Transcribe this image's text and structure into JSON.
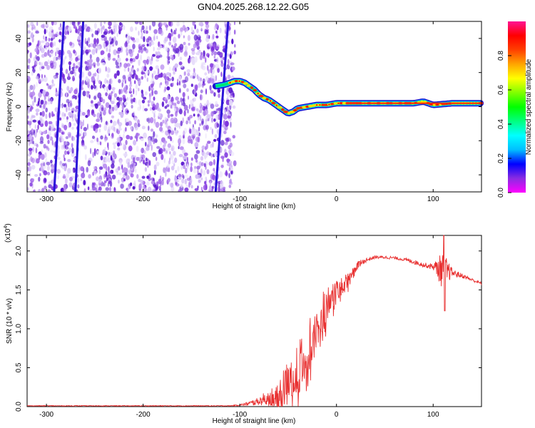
{
  "title": "GN04.2025.268.12.22.G05",
  "colors": {
    "snr_line": "#e83030",
    "colormap": [
      "#ffffff",
      "#d9c8f5",
      "#b07af0",
      "#8a2be2",
      "#3a1fd6",
      "#0000ff",
      "#00bfff",
      "#00e676",
      "#7cff00",
      "#ffff00",
      "#ffa500",
      "#ff0000",
      "#ff1493"
    ]
  },
  "chart_data": [
    {
      "type": "heatmap",
      "title": "GN04.2025.268.12.22.G05",
      "xlabel": "Height of straight line (km)",
      "ylabel": "Frequency (Hz)",
      "xlim": [
        -320,
        150
      ],
      "ylim": [
        -50,
        50
      ],
      "xticks": [
        -300,
        -200,
        -100,
        0,
        100
      ],
      "yticks": [
        -40,
        -20,
        0,
        20,
        40
      ],
      "colorbar": {
        "label": "Normalized spectral amplitude",
        "range": [
          0,
          1
        ],
        "ticks": [
          "0.0",
          "0.2",
          "0.4",
          "0.6",
          "0.8"
        ]
      },
      "ridge": {
        "x": [
          -125,
          -115,
          -110,
          -105,
          -100,
          -95,
          -90,
          -85,
          -80,
          -75,
          -70,
          -65,
          -60,
          -55,
          -50,
          -45,
          -40,
          -30,
          -20,
          -10,
          0,
          10,
          20,
          40,
          60,
          80,
          90,
          100,
          120,
          150
        ],
        "y": [
          12,
          13,
          14,
          15,
          15,
          14,
          12,
          10,
          7,
          5,
          4,
          2,
          0,
          -2,
          -4,
          -3,
          -1,
          0,
          1,
          1,
          2,
          2,
          2,
          2,
          2,
          2,
          3,
          1,
          2,
          2
        ]
      },
      "noise_region_x": [
        -320,
        -105
      ],
      "diagonal_streaks": [
        {
          "x_bottom": -292,
          "x_top": -282
        },
        {
          "x_bottom": -270,
          "x_top": -262
        },
        {
          "x_bottom": -125,
          "x_top": -112
        }
      ]
    },
    {
      "type": "line",
      "xlabel": "Height of straight line (km)",
      "ylabel": "SNR (10 * v/v)",
      "scale_label": "(x10",
      "scale_exponent": "4",
      "xlim": [
        -320,
        150
      ],
      "ylim": [
        0,
        2.2
      ],
      "xticks": [
        -300,
        -200,
        -100,
        0,
        100
      ],
      "yticks": [
        "0.0",
        "0.5",
        "1.0",
        "1.5",
        "2.0"
      ],
      "series": [
        {
          "x": [
            -320,
            -200,
            -110,
            -100,
            -90,
            -80,
            -70,
            -60,
            -55,
            -50,
            -45,
            -40,
            -35,
            -30,
            -25,
            -20,
            -15,
            -10,
            -5,
            0,
            5,
            10,
            15,
            20,
            30,
            40,
            50,
            60,
            70,
            80,
            90,
            100,
            110,
            120,
            130,
            140,
            150
          ],
          "y": [
            0.01,
            0.01,
            0.01,
            0.02,
            0.04,
            0.07,
            0.12,
            0.25,
            0.4,
            0.45,
            0.5,
            0.6,
            0.7,
            0.85,
            1.05,
            1.15,
            1.3,
            1.4,
            1.45,
            1.55,
            1.6,
            1.65,
            1.7,
            1.8,
            1.88,
            1.92,
            1.92,
            1.91,
            1.89,
            1.86,
            1.82,
            1.8,
            1.75,
            1.72,
            1.68,
            1.63,
            1.58
          ],
          "noise_amplitude": [
            0.005,
            0.005,
            0.005,
            0.01,
            0.03,
            0.05,
            0.12,
            0.25,
            0.3,
            0.3,
            0.35,
            0.4,
            0.45,
            0.45,
            0.4,
            0.35,
            0.35,
            0.3,
            0.25,
            0.2,
            0.15,
            0.15,
            0.1,
            0.06,
            0.03,
            0.02,
            0.02,
            0.02,
            0.02,
            0.03,
            0.03,
            0.04,
            0.25,
            0.05,
            0.03,
            0.02,
            0.02
          ]
        }
      ]
    }
  ]
}
